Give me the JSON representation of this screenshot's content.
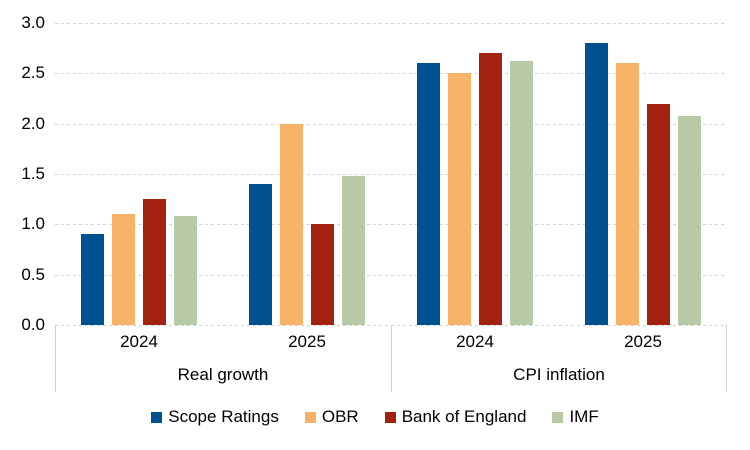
{
  "chart_data": {
    "type": "bar",
    "title": "",
    "y_axis": {
      "min": 0,
      "max": 3,
      "step": 0.5,
      "tick_labels": [
        "0.0",
        "0.5",
        "1.0",
        "1.5",
        "2.0",
        "2.5",
        "3.0"
      ]
    },
    "grid": true,
    "legend_position": "bottom",
    "group_labels": [
      "Real growth",
      "CPI inflation"
    ],
    "categories": [
      {
        "group": "Real growth",
        "label": "2024"
      },
      {
        "group": "Real growth",
        "label": "2025"
      },
      {
        "group": "CPI inflation",
        "label": "2024"
      },
      {
        "group": "CPI inflation",
        "label": "2025"
      }
    ],
    "series": [
      {
        "name": "Scope Ratings",
        "color": "#00518F",
        "values": [
          0.9,
          1.4,
          2.6,
          2.8
        ]
      },
      {
        "name": "OBR",
        "color": "#F6B266",
        "values": [
          1.1,
          2.0,
          2.5,
          2.6
        ]
      },
      {
        "name": "Bank of England",
        "color": "#A2220F",
        "values": [
          1.25,
          1.0,
          2.7,
          2.2
        ]
      },
      {
        "name": "IMF",
        "color": "#B8C9A5",
        "values": [
          1.08,
          1.48,
          2.62,
          2.08
        ]
      }
    ],
    "colors": {
      "gridline": "#d2d2d2",
      "text": "#000000",
      "background": "#ffffff"
    }
  }
}
